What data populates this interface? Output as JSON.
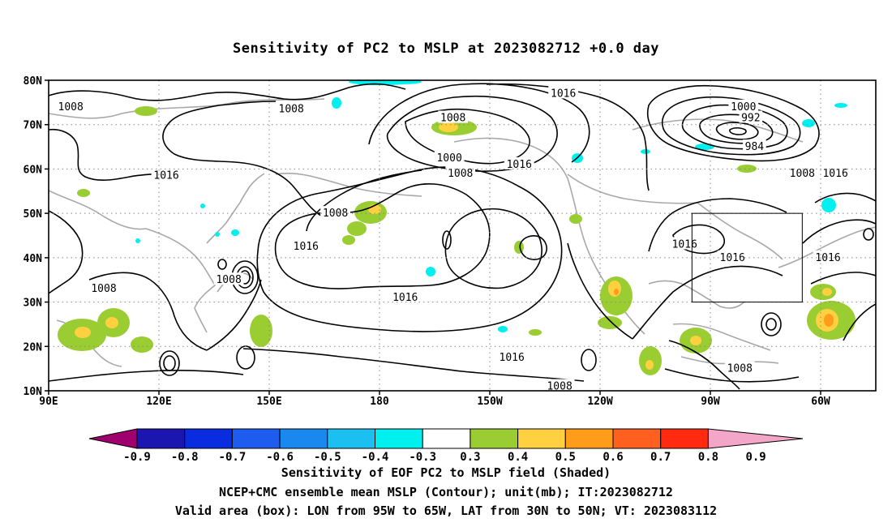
{
  "title": "Sensitivity of PC2 to MSLP at 2023082712 +0.0 day",
  "map": {
    "lat_labels": [
      "80N",
      "70N",
      "60N",
      "50N",
      "40N",
      "30N",
      "20N",
      "10N"
    ],
    "lon_labels": [
      "90E",
      "120E",
      "150E",
      "180",
      "150W",
      "120W",
      "90W",
      "60W"
    ],
    "contour_labels": [
      {
        "text": "1008",
        "lon": 96,
        "lat": 74
      },
      {
        "text": "1008",
        "lon": 156,
        "lat": 73.5
      },
      {
        "text": "1016",
        "lon": -130,
        "lat": 77
      },
      {
        "text": "1008",
        "lon": -160,
        "lat": 71.5
      },
      {
        "text": "1000",
        "lon": -161,
        "lat": 62.5
      },
      {
        "text": "1008",
        "lon": -158,
        "lat": 59
      },
      {
        "text": "1016",
        "lon": -142,
        "lat": 61
      },
      {
        "text": "1016",
        "lon": 122,
        "lat": 58.5
      },
      {
        "text": "1008",
        "lon": 168,
        "lat": 50
      },
      {
        "text": "1016",
        "lon": 160,
        "lat": 42.5
      },
      {
        "text": "1008",
        "lon": 139,
        "lat": 35
      },
      {
        "text": "1008",
        "lon": 105,
        "lat": 33
      },
      {
        "text": "1016",
        "lon": -173,
        "lat": 31
      },
      {
        "text": "1016",
        "lon": -144,
        "lat": 17.5
      },
      {
        "text": "1008",
        "lon": -131,
        "lat": 11
      },
      {
        "text": "1000",
        "lon": -81,
        "lat": 74
      },
      {
        "text": "992",
        "lon": -79,
        "lat": 71.5
      },
      {
        "text": "984",
        "lon": -78,
        "lat": 65
      },
      {
        "text": "1008",
        "lon": -65,
        "lat": 59
      },
      {
        "text": "1016",
        "lon": -56,
        "lat": 59
      },
      {
        "text": "1016",
        "lon": -97,
        "lat": 43
      },
      {
        "text": "1016",
        "lon": -84,
        "lat": 40
      },
      {
        "text": "1016",
        "lon": -58,
        "lat": 40
      },
      {
        "text": "1008",
        "lon": -82,
        "lat": 15
      }
    ],
    "valid_box": {
      "lon_west": -95,
      "lon_east": -65,
      "lat_south": 30,
      "lat_north": 50
    }
  },
  "colorbar": {
    "labels": [
      "-0.9",
      "-0.8",
      "-0.7",
      "-0.6",
      "-0.5",
      "-0.4",
      "-0.3",
      "0.3",
      "0.4",
      "0.5",
      "0.6",
      "0.7",
      "0.8",
      "0.9"
    ],
    "colors": [
      "#a0006e",
      "#1c16b0",
      "#0a2ce0",
      "#1e5cf0",
      "#1a88ee",
      "#1cc0f0",
      "#00f0f0",
      "#ffffff",
      "#9acd32",
      "#ffd040",
      "#ff9c1a",
      "#ff6020",
      "#ff2a10",
      "#f4a6c8"
    ]
  },
  "footer": {
    "line1": "Sensitivity of EOF PC2 to MSLP field (Shaded)",
    "line2": "NCEP+CMC ensemble mean MSLP (Contour); unit(mb); IT:2023082712",
    "line3": "Valid area (box): LON from 95W to 65W, LAT from 30N to 50N; VT: 2023083112"
  }
}
